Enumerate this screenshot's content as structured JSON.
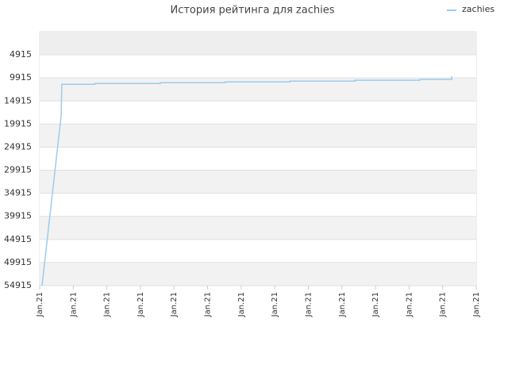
{
  "chart_data": {
    "type": "line",
    "title": "История рейтинга для zachies",
    "x": [
      0.07,
      0.64,
      0.66,
      1.65,
      1.65,
      3.59,
      3.59,
      5.53,
      5.53,
      7.45,
      7.45,
      9.39,
      9.39,
      11.32,
      11.32,
      12.27,
      12.27
    ],
    "series": [
      {
        "name": "zachies",
        "color": "#9ccbef",
        "values": [
          54915,
          18018,
          11294,
          11294,
          11121,
          11121,
          10949,
          10949,
          10776,
          10776,
          10604,
          10604,
          10431,
          10431,
          10259,
          10259,
          9569
        ]
      }
    ],
    "xlim": [
      0,
      13
    ],
    "xticks": [
      {
        "value": 0,
        "label": "Jan.21"
      },
      {
        "value": 1,
        "label": "Jan.21"
      },
      {
        "value": 2,
        "label": "Jan.21"
      },
      {
        "value": 3,
        "label": "Jan.21"
      },
      {
        "value": 4,
        "label": "Jan.21"
      },
      {
        "value": 5,
        "label": "Jan.21"
      },
      {
        "value": 6,
        "label": "Jan.21"
      },
      {
        "value": 7,
        "label": "Jan.21"
      },
      {
        "value": 8,
        "label": "Jan.21"
      },
      {
        "value": 9,
        "label": "Jan.21"
      },
      {
        "value": 10,
        "label": "Jan.21"
      },
      {
        "value": 11,
        "label": "Jan.21"
      },
      {
        "value": 12,
        "label": "Jan.21"
      },
      {
        "value": 13,
        "label": "Jan.21"
      }
    ],
    "ylim": [
      54915,
      -85
    ],
    "yticks": [
      4915,
      9915,
      14915,
      19915,
      24915,
      29915,
      34915,
      39915,
      44915,
      49915,
      54915
    ],
    "grid": true,
    "legend": "top-right"
  }
}
